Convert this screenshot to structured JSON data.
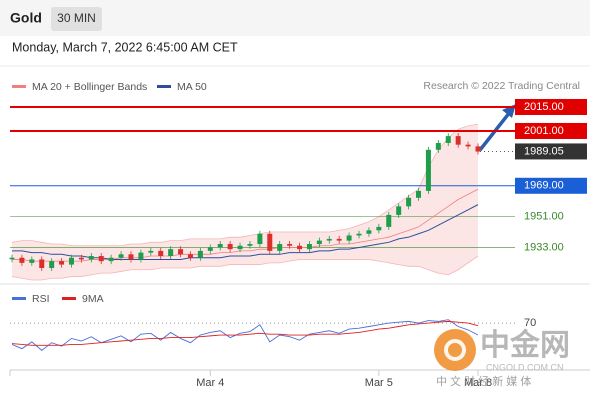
{
  "header": {
    "title": "Gold",
    "interval": "30 MIN",
    "date": "Monday, March 7, 2022 6:45:00 AM CET"
  },
  "chart_data": {
    "type": "candlestick",
    "legend": [
      {
        "name": "MA 20 + Bollinger Bands",
        "color": "#f08080"
      },
      {
        "name": "MA 50",
        "color": "#2d4f9a"
      }
    ],
    "source": "Research © 2022 Trading Central",
    "categories": [
      null,
      null,
      null,
      null,
      null,
      null,
      null,
      null,
      null,
      null,
      null,
      null,
      null,
      null,
      null,
      null,
      null,
      null,
      null,
      null,
      "Mar 4",
      null,
      null,
      null,
      null,
      null,
      null,
      null,
      null,
      null,
      null,
      null,
      null,
      null,
      null,
      null,
      null,
      "Mar 5",
      null,
      null,
      null,
      null,
      null,
      null,
      null,
      null,
      null,
      "Mar 8"
    ],
    "ylim": [
      1914,
      2022
    ],
    "up_color": "#1e9e4a",
    "down_color": "#d9302c",
    "close": [
      1927,
      1924,
      1926,
      1921,
      1925,
      1923,
      1927,
      1926,
      1928,
      1925,
      1927,
      1929,
      1926,
      1930,
      1931,
      1928,
      1932,
      1929,
      1927,
      1931,
      1933,
      1935,
      1932,
      1934,
      1935,
      1941,
      1931,
      1935,
      1934,
      1932,
      1935,
      1937,
      1938,
      1937,
      1940,
      1941,
      1943,
      1945,
      1952,
      1957,
      1962,
      1966,
      1990,
      1994,
      1998,
      1993,
      1992,
      1989
    ],
    "ma20": [
      1926,
      1926,
      1925,
      1925,
      1925,
      1925,
      1925,
      1925,
      1926,
      1926,
      1926,
      1927,
      1927,
      1927,
      1928,
      1928,
      1928,
      1929,
      1929,
      1929,
      1929,
      1930,
      1930,
      1931,
      1931,
      1932,
      1932,
      1933,
      1933,
      1933,
      1933,
      1934,
      1934,
      1935,
      1935,
      1936,
      1937,
      1938,
      1939,
      1941,
      1943,
      1945,
      1949,
      1953,
      1957,
      1961,
      1964,
      1967
    ],
    "upper_band": [
      1936,
      1937,
      1937,
      1936,
      1935,
      1935,
      1934,
      1934,
      1934,
      1934,
      1934,
      1934,
      1935,
      1935,
      1936,
      1936,
      1937,
      1937,
      1938,
      1938,
      1938,
      1938,
      1939,
      1939,
      1940,
      1941,
      1942,
      1942,
      1942,
      1942,
      1942,
      1942,
      1942,
      1943,
      1944,
      1946,
      1948,
      1951,
      1955,
      1959,
      1963,
      1967,
      1980,
      1990,
      1997,
      2002,
      2004,
      2005
    ],
    "lower_band": [
      1916,
      1915,
      1914,
      1914,
      1915,
      1915,
      1916,
      1916,
      1917,
      1918,
      1918,
      1919,
      1920,
      1920,
      1920,
      1921,
      1921,
      1921,
      1921,
      1922,
      1922,
      1922,
      1923,
      1923,
      1923,
      1923,
      1924,
      1924,
      1925,
      1926,
      1926,
      1926,
      1926,
      1926,
      1926,
      1926,
      1926,
      1925,
      1924,
      1923,
      1922,
      1922,
      1920,
      1918,
      1917,
      1920,
      1924,
      1928
    ],
    "ma50": [
      1931,
      1931,
      1930,
      1930,
      1929,
      1929,
      1928,
      1928,
      1927,
      1927,
      1926,
      1926,
      1926,
      1926,
      1926,
      1926,
      1926,
      1926,
      1927,
      1927,
      1927,
      1927,
      1928,
      1928,
      1928,
      1929,
      1929,
      1929,
      1930,
      1930,
      1930,
      1931,
      1931,
      1932,
      1932,
      1933,
      1934,
      1935,
      1936,
      1938,
      1939,
      1941,
      1943,
      1946,
      1949,
      1952,
      1955,
      1958
    ],
    "levels": [
      {
        "value": 2015,
        "label": "2015.00",
        "color": "#e00000",
        "style": "box"
      },
      {
        "value": 2001,
        "label": "2001.00",
        "color": "#e00000",
        "style": "box"
      },
      {
        "value": 1989.05,
        "label": "1989.05",
        "color": "#333333",
        "style": "current"
      },
      {
        "value": 1969,
        "label": "1969.00",
        "color": "#1a5fd6",
        "style": "box"
      },
      {
        "value": 1951,
        "label": "1951.00",
        "color": "#3a8a2a",
        "style": "text"
      },
      {
        "value": 1933,
        "label": "1933.00",
        "color": "#3a8a2a",
        "style": "text"
      }
    ],
    "rsi": {
      "legend": [
        {
          "name": "RSI",
          "color": "#4a6fd8"
        },
        {
          "name": "9MA",
          "color": "#e02020"
        }
      ],
      "ylim": [
        15,
        100
      ],
      "yticks": [
        70
      ],
      "rsi": [
        45,
        40,
        48,
        38,
        47,
        43,
        52,
        49,
        54,
        47,
        51,
        55,
        48,
        57,
        58,
        50,
        59,
        52,
        47,
        56,
        59,
        61,
        53,
        58,
        60,
        68,
        48,
        56,
        54,
        50,
        57,
        59,
        61,
        58,
        63,
        64,
        66,
        68,
        70,
        71,
        72,
        70,
        73,
        72,
        74,
        66,
        62,
        56
      ],
      "ma9": [
        46,
        45,
        44,
        44,
        44,
        44,
        45,
        45,
        46,
        47,
        48,
        49,
        50,
        51,
        52,
        52,
        53,
        53,
        53,
        54,
        55,
        56,
        56,
        56,
        57,
        58,
        57,
        57,
        56,
        56,
        56,
        57,
        57,
        57,
        58,
        59,
        61,
        63,
        64,
        66,
        68,
        69,
        70,
        71,
        72,
        71,
        70,
        67
      ]
    }
  },
  "watermark": {
    "name": "中金网",
    "site": "CNGOLD.COM.CN",
    "slogan": "中 文 财 经 新 媒 体"
  }
}
